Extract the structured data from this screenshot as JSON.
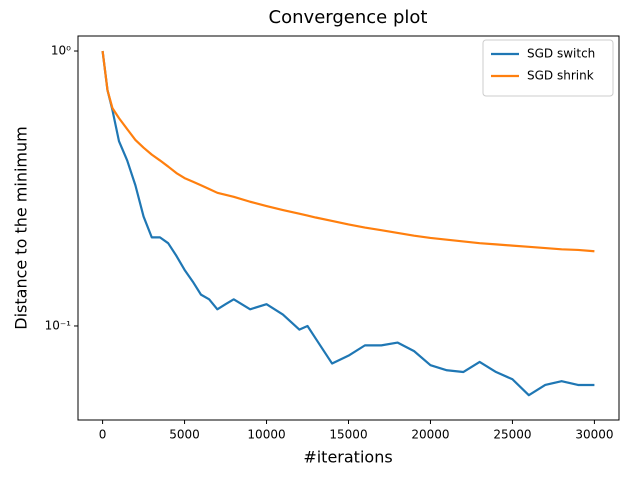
{
  "chart_data": {
    "type": "line",
    "title": "Convergence plot",
    "x_label": "#iterations",
    "y_label": "Distance to the minimum",
    "x": [
      0,
      300,
      600,
      1000,
      1500,
      2000,
      2500,
      3000,
      3500,
      4000,
      4500,
      5000,
      5500,
      6000,
      6500,
      7000,
      7500,
      8000,
      9000,
      10000,
      11000,
      12000,
      12500,
      13000,
      14000,
      15000,
      16000,
      17000,
      18000,
      19000,
      20000,
      21000,
      22000,
      23000,
      24000,
      25000,
      26000,
      27000,
      28000,
      29000,
      30000
    ],
    "series": [
      {
        "name": "SGD switch",
        "color": "#1f77b4",
        "values": [
          1.0,
          0.72,
          0.61,
          0.47,
          0.4,
          0.325,
          0.25,
          0.21,
          0.21,
          0.2,
          0.18,
          0.16,
          0.145,
          0.13,
          0.125,
          0.115,
          0.12,
          0.125,
          0.115,
          0.12,
          0.11,
          0.097,
          0.1,
          0.09,
          0.073,
          0.078,
          0.085,
          0.085,
          0.087,
          0.081,
          0.072,
          0.069,
          0.068,
          0.074,
          0.068,
          0.064,
          0.056,
          0.061,
          0.063,
          0.061,
          0.061
        ]
      },
      {
        "name": "SGD shrink",
        "color": "#ff7f0e",
        "values": [
          1.0,
          0.72,
          0.62,
          0.57,
          0.52,
          0.475,
          0.445,
          0.42,
          0.4,
          0.38,
          0.36,
          0.345,
          0.335,
          0.325,
          0.315,
          0.305,
          0.3,
          0.295,
          0.283,
          0.273,
          0.264,
          0.256,
          0.252,
          0.248,
          0.241,
          0.234,
          0.228,
          0.223,
          0.218,
          0.213,
          0.209,
          0.206,
          0.203,
          0.2,
          0.198,
          0.196,
          0.194,
          0.192,
          0.19,
          0.189,
          0.187
        ]
      }
    ],
    "xlim": [
      -1500,
      31500
    ],
    "xticks": [
      0,
      5000,
      10000,
      15000,
      20000,
      25000,
      30000
    ],
    "ylim": [
      0.0455,
      1.134
    ],
    "yticks": [
      {
        "value": 0.1,
        "label": "10⁻¹"
      },
      {
        "value": 1,
        "label": "10⁰"
      }
    ],
    "ylog": true,
    "legend": "upper right"
  }
}
